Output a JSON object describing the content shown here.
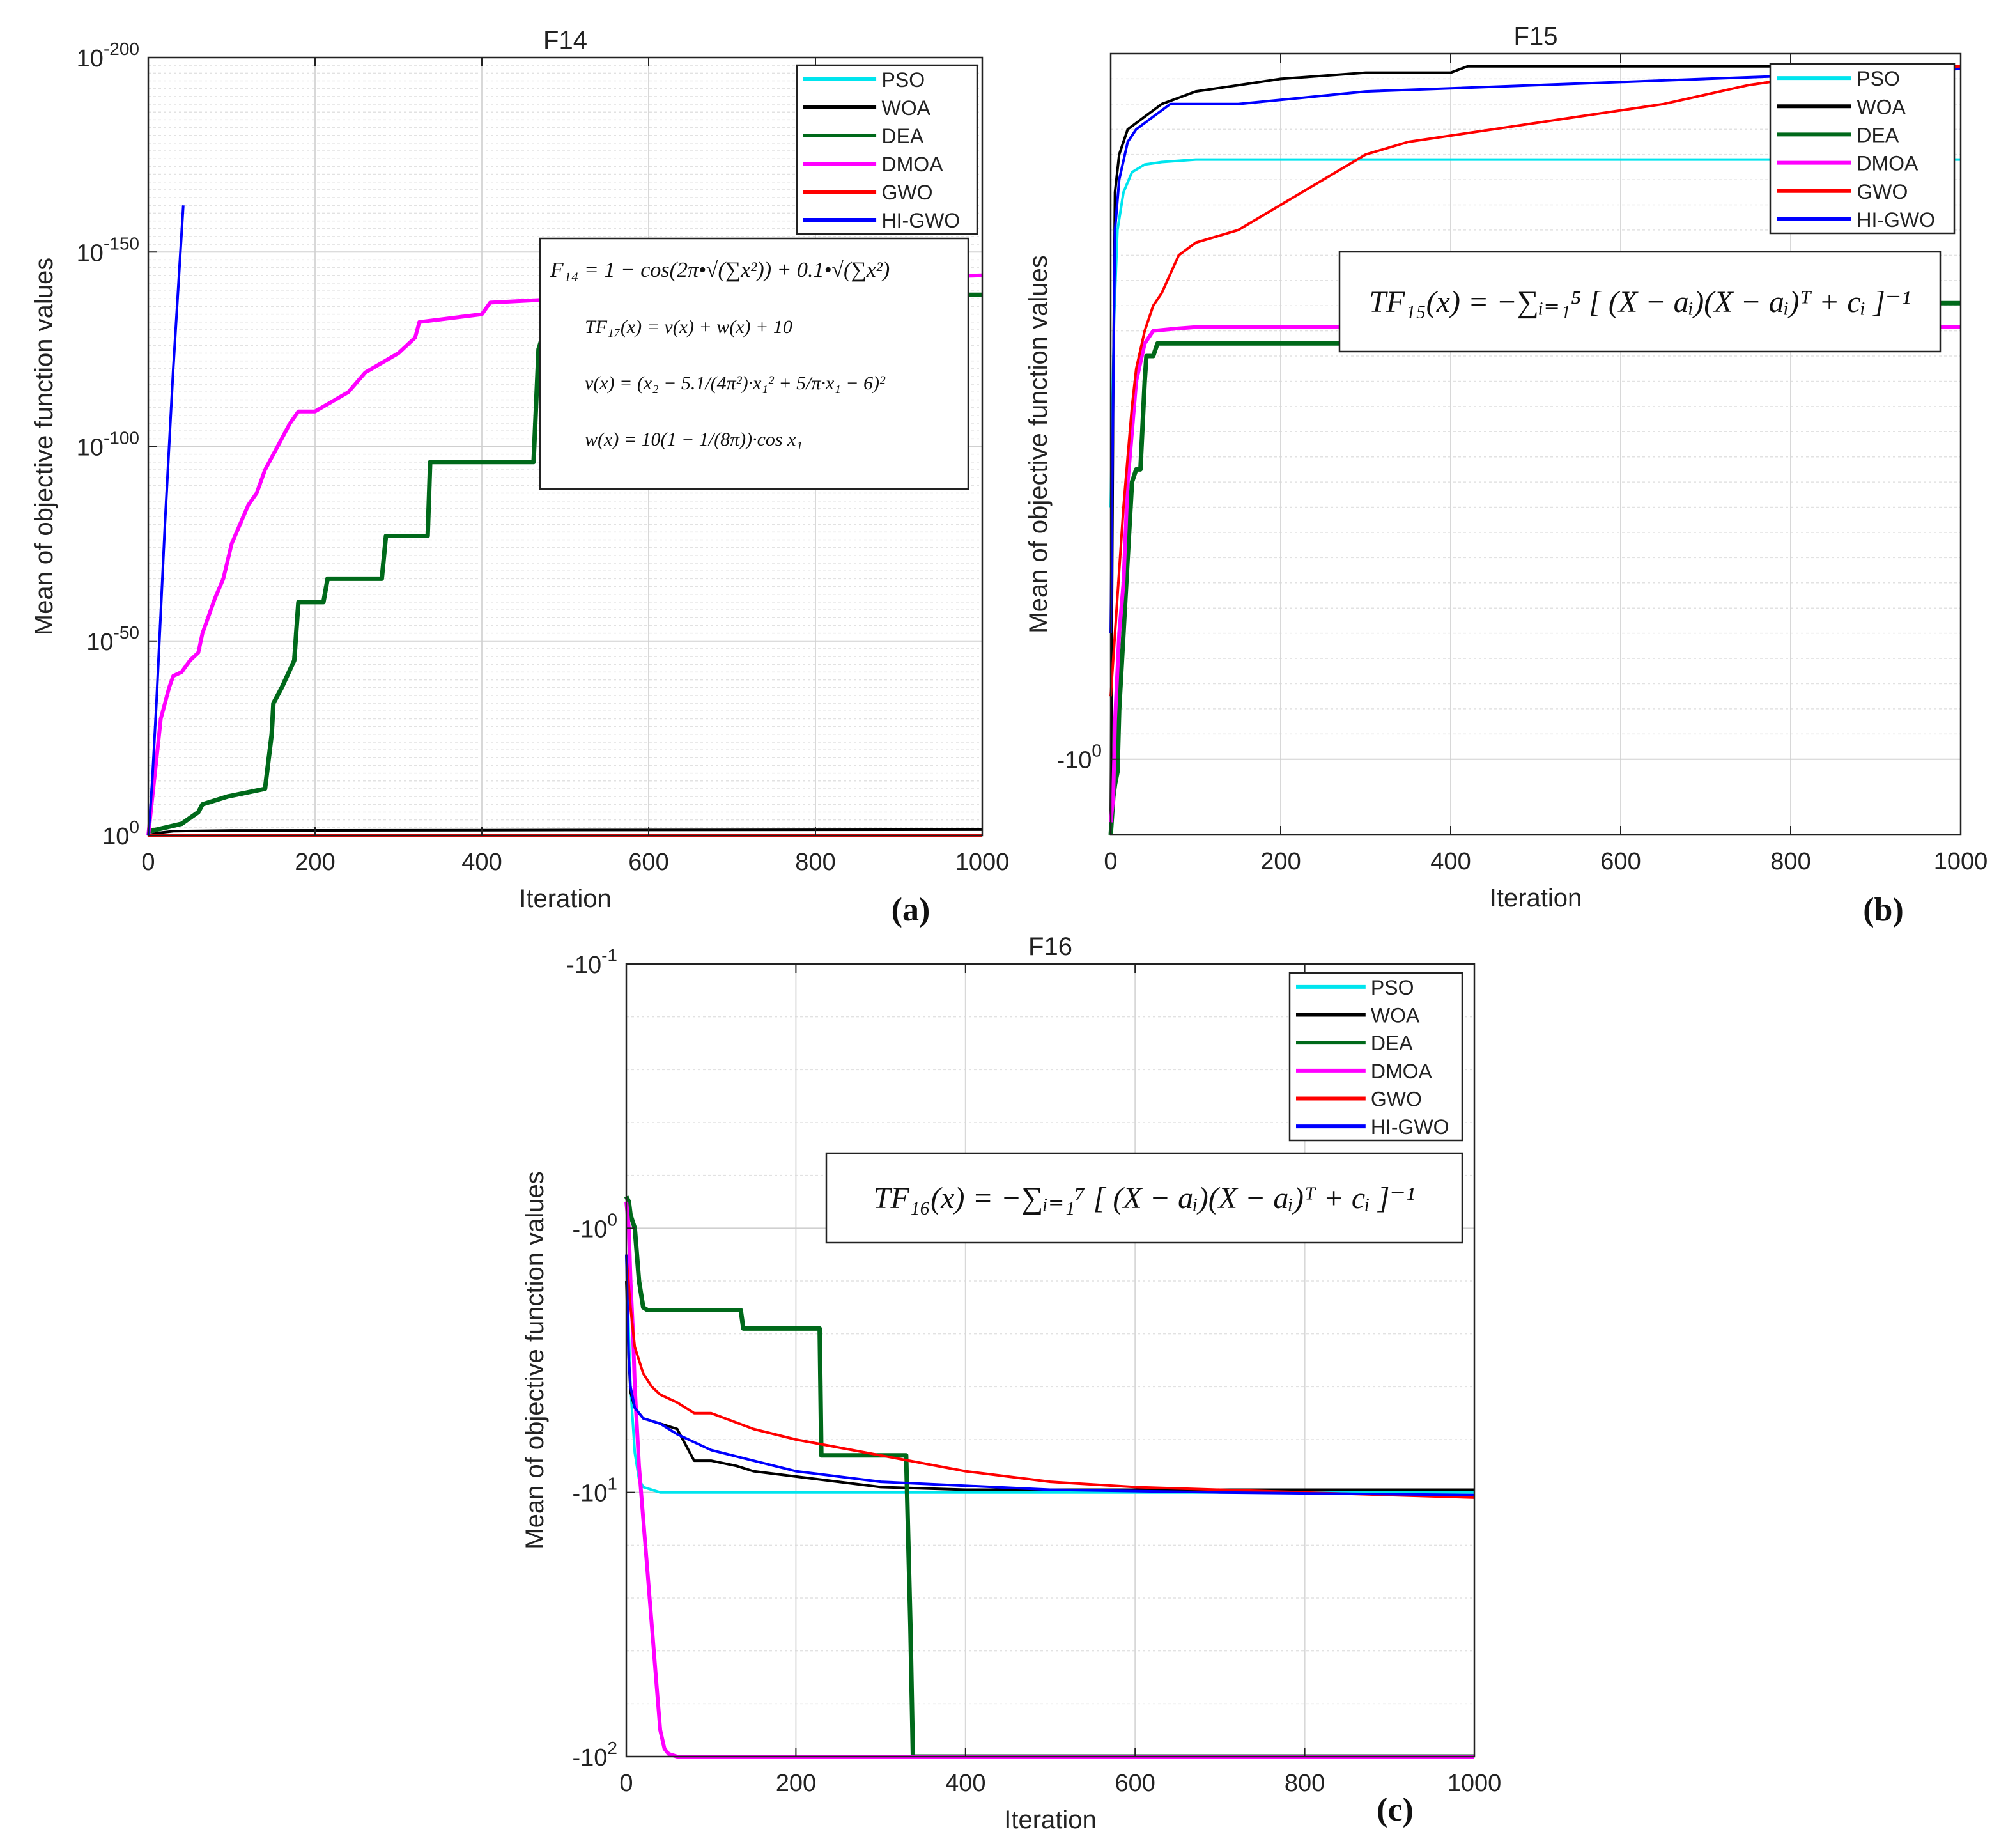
{
  "chart_data": [
    {
      "type": "line",
      "id": "a",
      "title": "F14",
      "panel_label": "(a)",
      "xlabel": "Iteration",
      "ylabel": "Mean of objective function values",
      "xlim": [
        0,
        1000
      ],
      "yscale": "log",
      "ylim_exp": [
        -200,
        0
      ],
      "xticks": [
        "0",
        "200",
        "400",
        "600",
        "800",
        "1000"
      ],
      "yticks": [
        {
          "base": "10",
          "exp": "0"
        },
        {
          "base": "10",
          "exp": "-50"
        },
        {
          "base": "10",
          "exp": "-100"
        },
        {
          "base": "10",
          "exp": "-150"
        },
        {
          "base": "10",
          "exp": "-200"
        }
      ],
      "legend": [
        "PSO",
        "WOA",
        "DEA",
        "DMOA",
        "GWO",
        "HI-GWO"
      ],
      "formula_lines": [
        "F₁₄ = 1 − cos(2π•√(∑x²)) + 0.1•√(∑x²)",
        "TF₁₇(x) = v(x) + w(x) + 10",
        "v(x) = (x₂ − 5.1/(4π²)·x₁² + 5/π·x₁ − 6)²",
        "w(x) = 10(1 − 1/(8π))·cos x₁"
      ],
      "series": [
        {
          "name": "PSO",
          "x": [
            0,
            1000
          ],
          "y": [
            0,
            0
          ]
        },
        {
          "name": "WOA",
          "x": [
            0,
            10,
            30,
            100,
            1000
          ],
          "y": [
            0,
            -0.6,
            -1.1,
            -1.3,
            -1.5
          ]
        },
        {
          "name": "DEA",
          "x": [
            0,
            20,
            40,
            60,
            65,
            95,
            140,
            148,
            150,
            160,
            175,
            180,
            210,
            215,
            280,
            285,
            335,
            338,
            462,
            468,
            475,
            482,
            1000
          ],
          "y": [
            -1,
            -2,
            -3,
            -6,
            -8,
            -10,
            -12,
            -26,
            -34,
            -38,
            -45,
            -60,
            -60,
            -66,
            -66,
            -77,
            -77,
            -96,
            -96,
            -125,
            -130,
            -139,
            -139
          ]
        },
        {
          "name": "DMOA",
          "x": [
            0,
            5,
            10,
            15,
            25,
            30,
            40,
            50,
            60,
            65,
            70,
            80,
            90,
            100,
            110,
            120,
            130,
            140,
            150,
            160,
            170,
            180,
            200,
            240,
            260,
            300,
            320,
            325,
            400,
            410,
            500,
            560,
            700,
            800,
            1000
          ],
          "y": [
            0,
            -10,
            -20,
            -30,
            -38,
            -41,
            -42,
            -45,
            -47,
            -52,
            -55,
            -61,
            -66,
            -75,
            -80,
            -85,
            -88,
            -94,
            -98,
            -102,
            -106,
            -109,
            -109,
            -114,
            -119,
            -124,
            -128,
            -132,
            -134,
            -137,
            -138,
            -141,
            -142,
            -143,
            -144
          ]
        },
        {
          "name": "GWO",
          "x": [
            0,
            1000
          ],
          "y": [
            0,
            0
          ]
        },
        {
          "name": "HI-GWO",
          "x": [
            0,
            2,
            5,
            10,
            20,
            30,
            40,
            42
          ],
          "y": [
            0,
            -5,
            -15,
            -35,
            -80,
            -120,
            -155,
            -162
          ]
        }
      ]
    },
    {
      "type": "line",
      "id": "b",
      "title": "F15",
      "panel_label": "(b)",
      "xlabel": "Iteration",
      "ylabel": "Mean of objective function values",
      "xlim": [
        0,
        1000
      ],
      "yscale": "log",
      "ylim_exp": [
        0.56,
        -0.06
      ],
      "xticks": [
        "0",
        "200",
        "400",
        "600",
        "800",
        "1000"
      ],
      "yticks": [
        {
          "base": "-10",
          "exp": "0"
        }
      ],
      "legend": [
        "PSO",
        "WOA",
        "DEA",
        "DMOA",
        "GWO",
        "HI-GWO"
      ],
      "formula_lines": [
        "TF₁₅(x) = −∑ᵢ₌₁⁵ [ (X − aᵢ)(X − aᵢ)ᵀ + cᵢ ]⁻¹"
      ],
      "series": [
        {
          "name": "PSO",
          "x": [
            0,
            2,
            4,
            8,
            15,
            25,
            40,
            60,
            100,
            1000
          ],
          "y": [
            0.2,
            0.28,
            0.35,
            0.42,
            0.45,
            0.466,
            0.472,
            0.474,
            0.476,
            0.476
          ]
        },
        {
          "name": "WOA",
          "x": [
            0,
            3,
            5,
            10,
            20,
            40,
            60,
            100,
            150,
            200,
            300,
            400,
            420,
            500,
            1000
          ],
          "y": [
            -0.05,
            0.3,
            0.45,
            0.48,
            0.5,
            0.51,
            0.52,
            0.53,
            0.535,
            0.54,
            0.545,
            0.545,
            0.55,
            0.55,
            0.55
          ]
        },
        {
          "name": "DEA",
          "x": [
            0,
            3,
            5,
            8,
            10,
            15,
            20,
            25,
            30,
            35,
            40,
            42,
            50,
            55,
            325,
            328,
            1000
          ],
          "y": [
            -0.06,
            -0.03,
            -0.02,
            -0.01,
            0.04,
            0.1,
            0.16,
            0.22,
            0.23,
            0.23,
            0.3,
            0.32,
            0.32,
            0.33,
            0.33,
            0.362,
            0.362
          ]
        },
        {
          "name": "DMOA",
          "x": [
            0,
            3,
            5,
            10,
            15,
            20,
            25,
            30,
            40,
            50,
            80,
            100,
            1000
          ],
          "y": [
            -0.05,
            -0.03,
            0.03,
            0.1,
            0.14,
            0.22,
            0.26,
            0.3,
            0.33,
            0.34,
            0.342,
            0.343,
            0.343
          ]
        },
        {
          "name": "GWO",
          "x": [
            0,
            5,
            10,
            15,
            20,
            25,
            30,
            40,
            50,
            60,
            70,
            80,
            100,
            150,
            200,
            250,
            300,
            350,
            450,
            550,
            650,
            750,
            850,
            1000
          ],
          "y": [
            0.05,
            0.1,
            0.15,
            0.2,
            0.24,
            0.28,
            0.31,
            0.34,
            0.36,
            0.37,
            0.385,
            0.4,
            0.41,
            0.42,
            0.44,
            0.46,
            0.48,
            0.49,
            0.5,
            0.51,
            0.52,
            0.535,
            0.545,
            0.55
          ]
        },
        {
          "name": "HI-GWO",
          "x": [
            0,
            3,
            5,
            10,
            20,
            30,
            50,
            70,
            100,
            150,
            300,
            500,
            700,
            900,
            1000
          ],
          "y": [
            0.1,
            0.3,
            0.42,
            0.46,
            0.49,
            0.5,
            0.51,
            0.52,
            0.52,
            0.52,
            0.53,
            0.535,
            0.54,
            0.545,
            0.548
          ]
        }
      ]
    },
    {
      "type": "line",
      "id": "c",
      "title": "F16",
      "panel_label": "(c)",
      "xlabel": "Iteration",
      "ylabel": "Mean of objective function values",
      "xlim": [
        0,
        1000
      ],
      "yscale": "log",
      "ylim_exp": [
        -1,
        2
      ],
      "xticks": [
        "0",
        "200",
        "400",
        "600",
        "800",
        "1000"
      ],
      "yticks": [
        {
          "base": "-10",
          "exp": "-1"
        },
        {
          "base": "-10",
          "exp": "0"
        },
        {
          "base": "-10",
          "exp": "1"
        },
        {
          "base": "-10",
          "exp": "2"
        }
      ],
      "legend": [
        "PSO",
        "WOA",
        "DEA",
        "DMOA",
        "GWO",
        "HI-GWO"
      ],
      "formula_lines": [
        "TF₁₆(x) = −∑ᵢ₌₁⁷ [ (X − aᵢ)(X − aᵢ)ᵀ + cᵢ ]⁻¹"
      ],
      "series": [
        {
          "name": "PSO",
          "x": [
            0,
            2,
            5,
            10,
            15,
            20,
            40,
            100,
            1000
          ],
          "y": [
            0.1,
            0.3,
            0.6,
            0.85,
            0.95,
            0.98,
            1.0,
            1.0,
            1.0
          ]
        },
        {
          "name": "WOA",
          "x": [
            0,
            3,
            5,
            10,
            20,
            40,
            60,
            80,
            100,
            130,
            150,
            200,
            250,
            300,
            400,
            1000
          ],
          "y": [
            0.2,
            0.5,
            0.62,
            0.68,
            0.72,
            0.74,
            0.76,
            0.88,
            0.88,
            0.9,
            0.92,
            0.94,
            0.96,
            0.98,
            0.99,
            0.99
          ]
        },
        {
          "name": "DEA",
          "x": [
            0,
            3,
            5,
            10,
            15,
            20,
            25,
            135,
            138,
            228,
            230,
            330,
            335,
            338,
            1000
          ],
          "y": [
            -0.12,
            -0.1,
            -0.05,
            0.0,
            0.2,
            0.3,
            0.31,
            0.31,
            0.38,
            0.38,
            0.86,
            0.86,
            1.5,
            2.0,
            2.0
          ]
        },
        {
          "name": "DMOA",
          "x": [
            0,
            3,
            5,
            8,
            10,
            15,
            20,
            25,
            30,
            35,
            40,
            45,
            50,
            60,
            80,
            1000
          ],
          "y": [
            -0.1,
            0.0,
            0.2,
            0.4,
            0.6,
            0.9,
            1.1,
            1.3,
            1.5,
            1.7,
            1.9,
            1.97,
            1.99,
            2.0,
            2.0,
            2.0
          ]
        },
        {
          "name": "GWO",
          "x": [
            0,
            5,
            10,
            20,
            30,
            40,
            60,
            80,
            100,
            150,
            200,
            250,
            300,
            400,
            500,
            600,
            800,
            1000
          ],
          "y": [
            0.1,
            0.3,
            0.45,
            0.55,
            0.6,
            0.63,
            0.66,
            0.7,
            0.7,
            0.76,
            0.8,
            0.83,
            0.86,
            0.92,
            0.96,
            0.98,
            1.0,
            1.02
          ]
        },
        {
          "name": "HI-GWO",
          "x": [
            0,
            3,
            5,
            10,
            20,
            40,
            60,
            100,
            150,
            200,
            300,
            500,
            700,
            1000
          ],
          "y": [
            0.1,
            0.5,
            0.6,
            0.68,
            0.72,
            0.74,
            0.78,
            0.84,
            0.88,
            0.92,
            0.96,
            0.99,
            1.0,
            1.01
          ]
        }
      ]
    }
  ],
  "series_colors": {
    "PSO": "#00e5ee",
    "WOA": "#000000",
    "DEA": "#00691a",
    "DMOA": "#ff00ff",
    "GWO": "#ff0000",
    "HI-GWO": "#0000ff"
  }
}
